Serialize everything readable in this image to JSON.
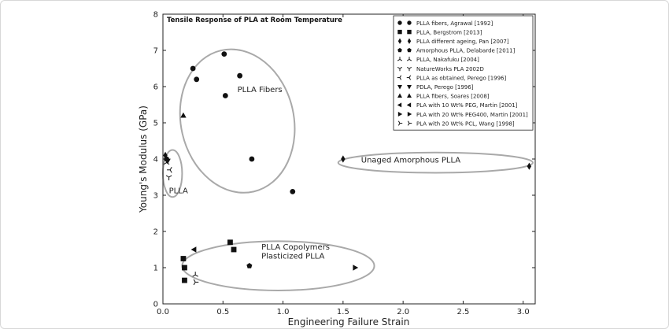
{
  "chart_data": {
    "type": "scatter",
    "title": "Tensile Response of PLA at Room Temperature",
    "xlabel": "Engineering Failure Strain",
    "ylabel": "Young's Modulus (GPa)",
    "xlim": [
      0.0,
      3.1
    ],
    "ylim": [
      0,
      8
    ],
    "xticks": [
      "0.0",
      "0.5",
      "1.0",
      "1.5",
      "2.0",
      "2.5",
      "3.0"
    ],
    "yticks": [
      "0",
      "1",
      "2",
      "3",
      "4",
      "5",
      "6",
      "7",
      "8"
    ],
    "grid": false,
    "legend_position": "top-right",
    "series": [
      {
        "name": "PLLA fibers, Agrawal [1992]",
        "marker": "circle",
        "points": [
          [
            0.25,
            6.5
          ],
          [
            0.28,
            6.2
          ],
          [
            0.51,
            6.9
          ],
          [
            0.52,
            5.75
          ],
          [
            0.64,
            6.3
          ],
          [
            0.74,
            4.0
          ],
          [
            1.08,
            3.1
          ]
        ]
      },
      {
        "name": "PLLA, Bergstrom [2013]",
        "marker": "square",
        "points": [
          [
            0.17,
            1.25
          ],
          [
            0.18,
            1.0
          ],
          [
            0.18,
            0.65
          ],
          [
            0.56,
            1.7
          ],
          [
            0.59,
            1.5
          ]
        ]
      },
      {
        "name": "PLLA different ageing, Pan [2007]",
        "marker": "diamond",
        "points": [
          [
            1.5,
            4.0
          ],
          [
            3.05,
            3.8
          ]
        ]
      },
      {
        "name": "Amorphous PLLA, Delabarde [2011]",
        "marker": "pentagon",
        "points": [
          [
            0.72,
            1.05
          ]
        ]
      },
      {
        "name": "PLLA, Nakafuku [2004]",
        "marker": "tri_down",
        "points": [
          [
            0.03,
            3.9
          ],
          [
            0.27,
            0.8
          ]
        ]
      },
      {
        "name": "NatureWorks PLA 2002D",
        "marker": "tri_up",
        "points": [
          [
            0.05,
            3.5
          ]
        ]
      },
      {
        "name": "PLLA as obtained, Perego [1996]",
        "marker": "tri_right",
        "points": [
          [
            0.06,
            3.7
          ]
        ]
      },
      {
        "name": "PDLA, Perego [1996]",
        "marker": "triangle_down",
        "points": [
          [
            0.04,
            3.95
          ]
        ]
      },
      {
        "name": "PLLA fibers, Soares [2008]",
        "marker": "triangle_up",
        "points": [
          [
            0.17,
            5.2
          ]
        ]
      },
      {
        "name": "PLA with 10 Wt% PEG, Martin [2001]",
        "marker": "triangle_left",
        "points": [
          [
            0.26,
            1.5
          ]
        ]
      },
      {
        "name": "PLA with 20 Wt% PEG400, Martin [2001]",
        "marker": "triangle_right",
        "points": [
          [
            1.6,
            1.0
          ]
        ]
      },
      {
        "name": "PLA with 20 Wt% PCL, Wang [1998]",
        "marker": "tri_left",
        "points": [
          [
            0.27,
            0.6
          ]
        ]
      }
    ],
    "extra_points": [
      {
        "marker": "diamond",
        "points": [
          [
            0.02,
            4.1
          ]
        ]
      },
      {
        "marker": "circle",
        "points": [
          [
            0.03,
            4.0
          ]
        ]
      }
    ],
    "annotations": [
      {
        "text": "PLLA Fibers",
        "x": 0.62,
        "y": 5.85
      },
      {
        "text": "Unaged Amorphous PLLA",
        "x": 1.65,
        "y": 3.9
      },
      {
        "text": "PLLA",
        "x": 0.05,
        "y": 3.05
      },
      {
        "text": "PLLA Copolymers",
        "x": 0.82,
        "y": 1.5
      },
      {
        "text": "Plasticized PLLA",
        "x": 0.82,
        "y": 1.25
      }
    ],
    "regions": [
      {
        "label": "PLLA Fibers",
        "cx": 0.62,
        "cy": 5.05,
        "rx": 0.47,
        "ry": 2.0,
        "angle_deg": -13
      },
      {
        "label": "Unaged Amorphous PLLA",
        "cx": 2.27,
        "cy": 3.9,
        "rx": 0.81,
        "ry": 0.28,
        "angle_deg": 0
      },
      {
        "label": "PLLA",
        "cx": 0.08,
        "cy": 3.6,
        "rx": 0.08,
        "ry": 0.65,
        "angle_deg": 0
      },
      {
        "label": "PLLA Copolymers / Plasticized PLLA",
        "cx": 0.96,
        "cy": 1.05,
        "rx": 0.8,
        "ry": 0.68,
        "angle_deg": 0
      }
    ],
    "colors": {
      "markers": "#111111",
      "regions": "#a9a9a9",
      "axes": "#222222"
    }
  }
}
